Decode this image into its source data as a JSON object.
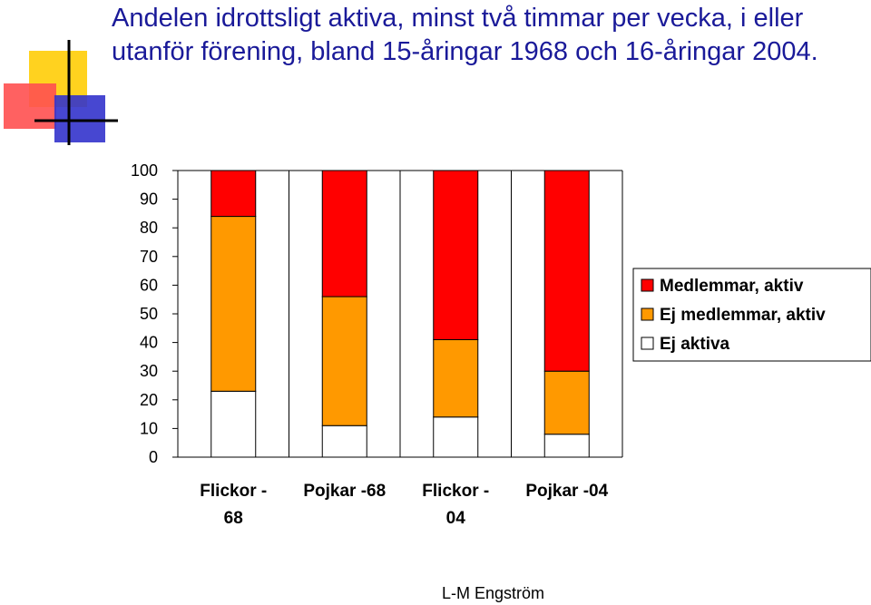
{
  "title": "Andelen idrottsligt aktiva, minst två timmar per vecka, i eller utanför förening, bland 15-åringar 1968 och 16-åringar 2004.",
  "footer": "L-M Engström",
  "colors": {
    "title": "#1a1a99",
    "series": [
      "#ff0000",
      "#ff9900",
      "#ffffff"
    ],
    "decor_yellow": "#ffd21f",
    "decor_red": "#ff5050",
    "decor_blue": "#3333cc"
  },
  "chart_data": {
    "type": "bar",
    "stacked": true,
    "categories": [
      [
        "Flickor -",
        "68"
      ],
      [
        "Pojkar -68"
      ],
      [
        "Flickor -",
        "04"
      ],
      [
        "Pojkar -04"
      ]
    ],
    "series": [
      {
        "name": "Ej aktiva",
        "values": [
          23,
          11,
          14,
          8
        ]
      },
      {
        "name": "Ej medlemmar, aktiv",
        "values": [
          61,
          45,
          27,
          22
        ]
      },
      {
        "name": "Medlemmar, aktiv",
        "values": [
          16,
          44,
          59,
          70
        ]
      }
    ],
    "legend_order": [
      "Medlemmar, aktiv",
      "Ej medlemmar, aktiv",
      "Ej aktiva"
    ],
    "ylim": [
      0,
      100
    ],
    "yticks": [
      0,
      10,
      20,
      30,
      40,
      50,
      60,
      70,
      80,
      90,
      100
    ],
    "grid": "vertical",
    "legend_position": "right"
  }
}
